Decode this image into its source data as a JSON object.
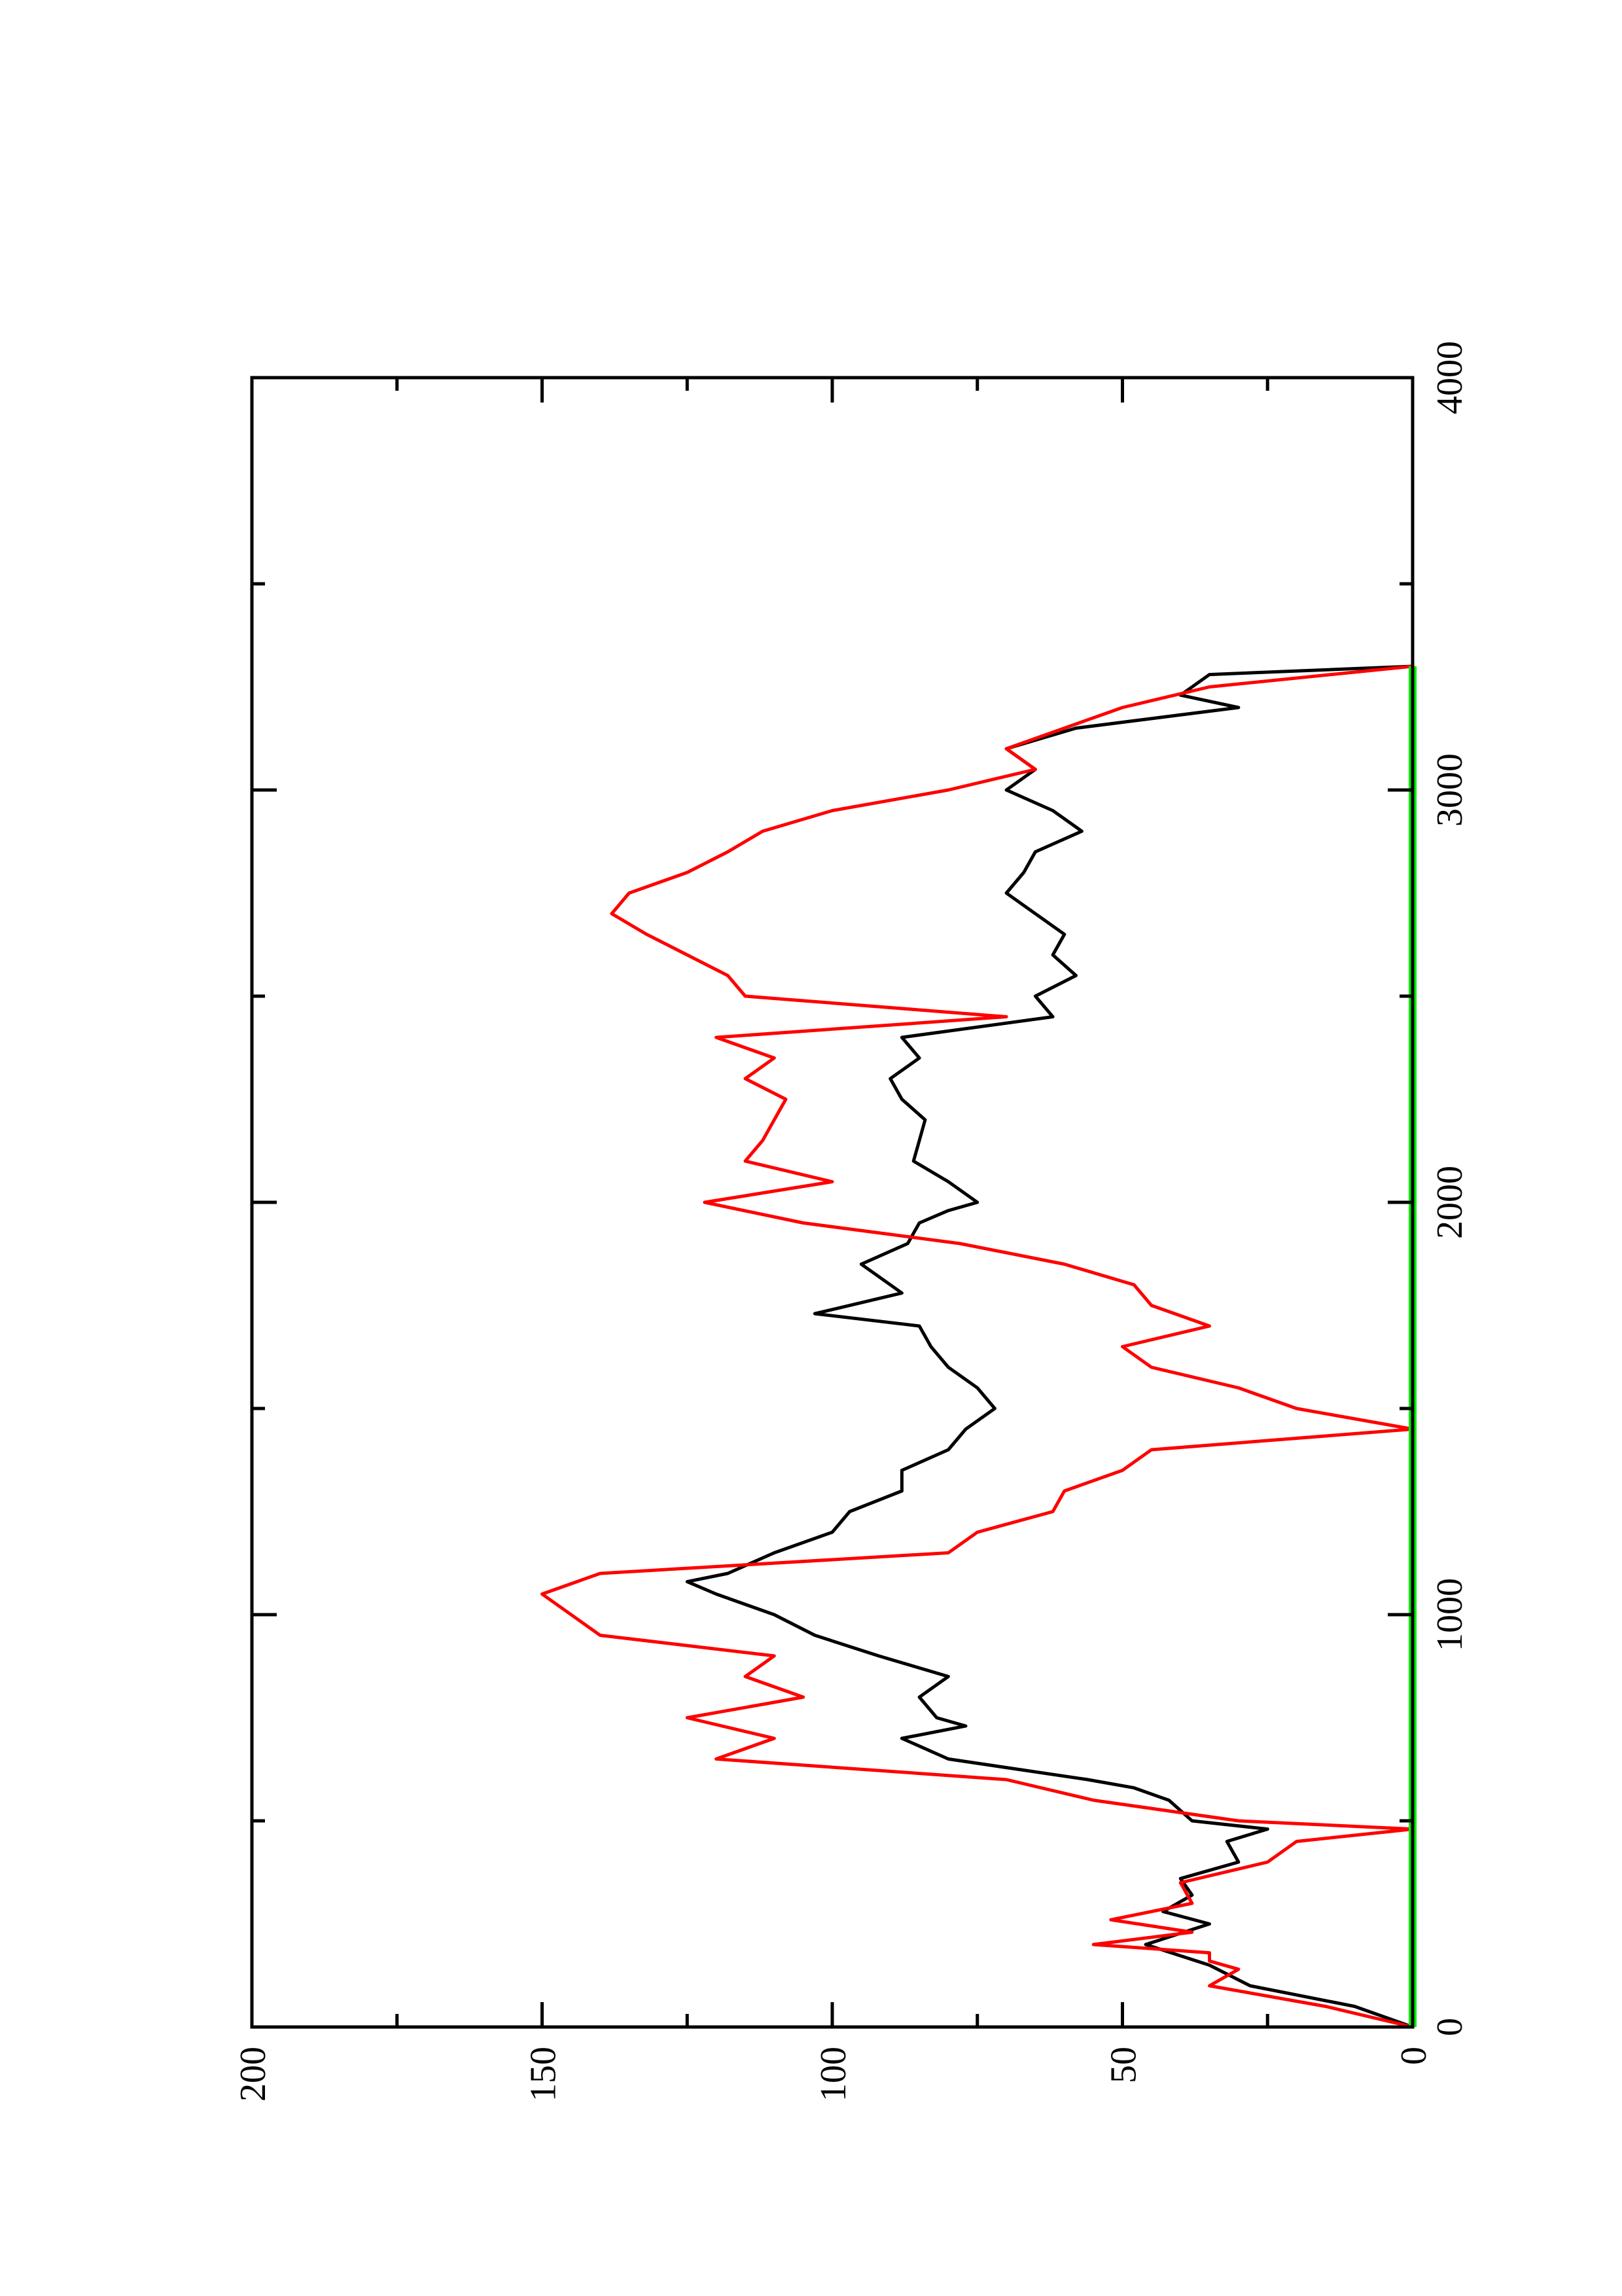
{
  "chart_data": {
    "type": "line",
    "orientation": "rotated-90-clockwise",
    "title": "",
    "xlabel": "",
    "ylabel": "",
    "xlim": [
      0,
      4000
    ],
    "ylim": [
      0,
      200
    ],
    "x_ticks": [
      0,
      1000,
      2000,
      3000,
      4000
    ],
    "x_minor_ticks": [
      500,
      1500,
      2500,
      3500
    ],
    "y_ticks": [
      0,
      50,
      100,
      150,
      200
    ],
    "y_minor_ticks": [
      25,
      75,
      125,
      175
    ],
    "x_tick_labels": [
      "0",
      "1000",
      "2000",
      "3000",
      "4000"
    ],
    "y_tick_labels": [
      "0",
      "50",
      "100",
      "150",
      "200"
    ],
    "grid": false,
    "legend": "none",
    "series": [
      {
        "color": "#000000",
        "points": [
          [
            0,
            0
          ],
          [
            50,
            10
          ],
          [
            100,
            28
          ],
          [
            150,
            35
          ],
          [
            200,
            46
          ],
          [
            250,
            35
          ],
          [
            280,
            43
          ],
          [
            320,
            38
          ],
          [
            360,
            40
          ],
          [
            400,
            30
          ],
          [
            450,
            32
          ],
          [
            480,
            25
          ],
          [
            500,
            38
          ],
          [
            550,
            42
          ],
          [
            580,
            48
          ],
          [
            600,
            56
          ],
          [
            650,
            80
          ],
          [
            700,
            88
          ],
          [
            730,
            77
          ],
          [
            750,
            82
          ],
          [
            800,
            85
          ],
          [
            850,
            80
          ],
          [
            900,
            92
          ],
          [
            950,
            103
          ],
          [
            1000,
            110
          ],
          [
            1050,
            120
          ],
          [
            1080,
            125
          ],
          [
            1100,
            118
          ],
          [
            1150,
            110
          ],
          [
            1200,
            100
          ],
          [
            1250,
            97
          ],
          [
            1300,
            88
          ],
          [
            1350,
            88
          ],
          [
            1400,
            80
          ],
          [
            1450,
            77
          ],
          [
            1500,
            72
          ],
          [
            1550,
            75
          ],
          [
            1600,
            80
          ],
          [
            1650,
            83
          ],
          [
            1700,
            85
          ],
          [
            1730,
            103
          ],
          [
            1780,
            88
          ],
          [
            1800,
            90
          ],
          [
            1850,
            95
          ],
          [
            1900,
            87
          ],
          [
            1950,
            85
          ],
          [
            1980,
            80
          ],
          [
            2000,
            75
          ],
          [
            2050,
            80
          ],
          [
            2100,
            86
          ],
          [
            2150,
            85
          ],
          [
            2200,
            84
          ],
          [
            2250,
            88
          ],
          [
            2300,
            90
          ],
          [
            2350,
            85
          ],
          [
            2400,
            88
          ],
          [
            2450,
            62
          ],
          [
            2500,
            65
          ],
          [
            2550,
            58
          ],
          [
            2600,
            62
          ],
          [
            2650,
            60
          ],
          [
            2700,
            65
          ],
          [
            2750,
            70
          ],
          [
            2800,
            67
          ],
          [
            2850,
            65
          ],
          [
            2900,
            57
          ],
          [
            2950,
            62
          ],
          [
            3000,
            70
          ],
          [
            3050,
            65
          ],
          [
            3100,
            70
          ],
          [
            3150,
            58
          ],
          [
            3200,
            30
          ],
          [
            3230,
            40
          ],
          [
            3280,
            35
          ],
          [
            3300,
            0
          ]
        ]
      },
      {
        "color": "#ff0000",
        "points": [
          [
            0,
            0
          ],
          [
            50,
            15
          ],
          [
            100,
            35
          ],
          [
            140,
            30
          ],
          [
            160,
            35
          ],
          [
            180,
            35
          ],
          [
            200,
            55
          ],
          [
            230,
            38
          ],
          [
            260,
            52
          ],
          [
            300,
            38
          ],
          [
            350,
            40
          ],
          [
            400,
            25
          ],
          [
            450,
            20
          ],
          [
            480,
            0
          ],
          [
            500,
            30
          ],
          [
            550,
            55
          ],
          [
            600,
            70
          ],
          [
            650,
            120
          ],
          [
            700,
            110
          ],
          [
            750,
            125
          ],
          [
            800,
            105
          ],
          [
            850,
            115
          ],
          [
            900,
            110
          ],
          [
            950,
            140
          ],
          [
            1000,
            145
          ],
          [
            1050,
            150
          ],
          [
            1100,
            140
          ],
          [
            1150,
            80
          ],
          [
            1200,
            75
          ],
          [
            1250,
            62
          ],
          [
            1300,
            60
          ],
          [
            1350,
            50
          ],
          [
            1400,
            45
          ],
          [
            1450,
            0
          ],
          [
            1500,
            20
          ],
          [
            1550,
            30
          ],
          [
            1600,
            45
          ],
          [
            1650,
            50
          ],
          [
            1700,
            35
          ],
          [
            1750,
            45
          ],
          [
            1800,
            48
          ],
          [
            1850,
            60
          ],
          [
            1900,
            78
          ],
          [
            1950,
            105
          ],
          [
            2000,
            122
          ],
          [
            2050,
            100
          ],
          [
            2100,
            115
          ],
          [
            2150,
            112
          ],
          [
            2200,
            110
          ],
          [
            2250,
            108
          ],
          [
            2300,
            115
          ],
          [
            2350,
            110
          ],
          [
            2400,
            120
          ],
          [
            2450,
            70
          ],
          [
            2500,
            115
          ],
          [
            2550,
            118
          ],
          [
            2600,
            125
          ],
          [
            2650,
            132
          ],
          [
            2700,
            138
          ],
          [
            2750,
            135
          ],
          [
            2800,
            125
          ],
          [
            2850,
            118
          ],
          [
            2900,
            112
          ],
          [
            2950,
            100
          ],
          [
            3000,
            80
          ],
          [
            3050,
            65
          ],
          [
            3100,
            70
          ],
          [
            3150,
            60
          ],
          [
            3200,
            50
          ],
          [
            3250,
            35
          ],
          [
            3300,
            0
          ]
        ]
      },
      {
        "color": "#00ee00",
        "points": [
          [
            0,
            0
          ],
          [
            3300,
            0
          ]
        ]
      }
    ]
  }
}
